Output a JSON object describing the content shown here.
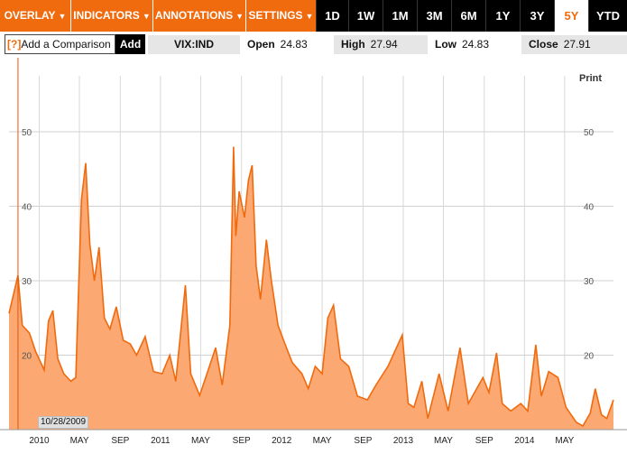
{
  "toolbar": {
    "menus": [
      {
        "label": "OVERLAY"
      },
      {
        "label": "INDICATORS"
      },
      {
        "label": "ANNOTATIONS"
      },
      {
        "label": "SETTINGS"
      }
    ],
    "caret_icon": "caret-down-icon",
    "ranges": [
      "1D",
      "1W",
      "1M",
      "3M",
      "6M",
      "1Y",
      "3Y",
      "5Y",
      "YTD"
    ],
    "active_range": "5Y",
    "accent_color": "#f06a0e"
  },
  "quote": {
    "comparison_prefix": "[?]",
    "comparison_placeholder": "Add a Comparison",
    "add_label": "Add",
    "symbol": "VIX:IND",
    "open_label": "Open",
    "open_value": "24.83",
    "high_label": "High",
    "high_value": "27.94",
    "low_label": "Low",
    "low_value": "24.83",
    "close_label": "Close",
    "close_value": "27.91"
  },
  "print_label": "Print",
  "marker_date": "10/28/2009",
  "chart_data": {
    "type": "area",
    "series_color": "#f06a0e",
    "fill_color": "#fba872",
    "ylim": [
      10,
      60
    ],
    "yticks": [
      20,
      30,
      40,
      50
    ],
    "xtick_labels": [
      "2010",
      "MAY",
      "SEP",
      "2011",
      "MAY",
      "SEP",
      "2012",
      "MAY",
      "SEP",
      "2013",
      "MAY",
      "SEP",
      "2014",
      "MAY"
    ],
    "grid": true,
    "points": [
      [
        "2009-10-01",
        25.6
      ],
      [
        "2009-10-28",
        30.7
      ],
      [
        "2009-11-10",
        24.0
      ],
      [
        "2009-12-01",
        23.0
      ],
      [
        "2009-12-20",
        20.5
      ],
      [
        "2010-01-15",
        18.0
      ],
      [
        "2010-01-28",
        24.6
      ],
      [
        "2010-02-10",
        26.0
      ],
      [
        "2010-02-25",
        19.5
      ],
      [
        "2010-03-15",
        17.5
      ],
      [
        "2010-04-05",
        16.5
      ],
      [
        "2010-04-20",
        17.0
      ],
      [
        "2010-05-07",
        40.9
      ],
      [
        "2010-05-20",
        45.8
      ],
      [
        "2010-06-01",
        35.0
      ],
      [
        "2010-06-15",
        30.0
      ],
      [
        "2010-06-29",
        34.5
      ],
      [
        "2010-07-15",
        25.0
      ],
      [
        "2010-08-01",
        23.5
      ],
      [
        "2010-08-20",
        26.5
      ],
      [
        "2010-09-10",
        22.0
      ],
      [
        "2010-10-01",
        21.5
      ],
      [
        "2010-10-20",
        20.0
      ],
      [
        "2010-11-15",
        22.5
      ],
      [
        "2010-12-10",
        17.8
      ],
      [
        "2011-01-05",
        17.5
      ],
      [
        "2011-01-28",
        20.0
      ],
      [
        "2011-02-15",
        16.5
      ],
      [
        "2011-03-16",
        29.4
      ],
      [
        "2011-04-01",
        17.5
      ],
      [
        "2011-04-28",
        14.6
      ],
      [
        "2011-05-20",
        17.5
      ],
      [
        "2011-06-15",
        21.0
      ],
      [
        "2011-07-05",
        16.0
      ],
      [
        "2011-07-28",
        24.0
      ],
      [
        "2011-08-08",
        48.0
      ],
      [
        "2011-08-15",
        36.0
      ],
      [
        "2011-08-25",
        42.0
      ],
      [
        "2011-09-10",
        38.5
      ],
      [
        "2011-09-22",
        43.5
      ],
      [
        "2011-10-03",
        45.5
      ],
      [
        "2011-10-15",
        32.0
      ],
      [
        "2011-10-28",
        27.5
      ],
      [
        "2011-11-15",
        35.5
      ],
      [
        "2011-11-30",
        30.0
      ],
      [
        "2011-12-20",
        24.0
      ],
      [
        "2012-01-10",
        21.5
      ],
      [
        "2012-02-01",
        19.0
      ],
      [
        "2012-03-01",
        17.5
      ],
      [
        "2012-03-20",
        15.5
      ],
      [
        "2012-04-10",
        18.5
      ],
      [
        "2012-05-01",
        17.5
      ],
      [
        "2012-05-18",
        25.0
      ],
      [
        "2012-06-04",
        26.7
      ],
      [
        "2012-06-25",
        19.5
      ],
      [
        "2012-07-20",
        18.5
      ],
      [
        "2012-08-15",
        14.5
      ],
      [
        "2012-09-14",
        14.0
      ],
      [
        "2012-10-10",
        16.0
      ],
      [
        "2012-11-15",
        18.5
      ],
      [
        "2012-12-28",
        22.7
      ],
      [
        "2013-01-15",
        13.5
      ],
      [
        "2013-02-01",
        13.0
      ],
      [
        "2013-02-25",
        16.5
      ],
      [
        "2013-03-15",
        11.5
      ],
      [
        "2013-04-18",
        17.5
      ],
      [
        "2013-05-15",
        12.5
      ],
      [
        "2013-06-20",
        21.0
      ],
      [
        "2013-07-15",
        13.5
      ],
      [
        "2013-08-28",
        17.0
      ],
      [
        "2013-09-15",
        15.0
      ],
      [
        "2013-10-08",
        20.3
      ],
      [
        "2013-10-25",
        13.5
      ],
      [
        "2013-11-20",
        12.5
      ],
      [
        "2013-12-20",
        13.5
      ],
      [
        "2014-01-10",
        12.5
      ],
      [
        "2014-02-03",
        21.4
      ],
      [
        "2014-02-20",
        14.5
      ],
      [
        "2014-03-14",
        17.8
      ],
      [
        "2014-04-11",
        17.0
      ],
      [
        "2014-05-05",
        13.0
      ],
      [
        "2014-06-05",
        11.0
      ],
      [
        "2014-06-25",
        10.5
      ],
      [
        "2014-07-17",
        12.2
      ],
      [
        "2014-08-01",
        15.5
      ],
      [
        "2014-08-20",
        12.0
      ],
      [
        "2014-09-05",
        11.5
      ],
      [
        "2014-09-25",
        14.0
      ]
    ]
  }
}
